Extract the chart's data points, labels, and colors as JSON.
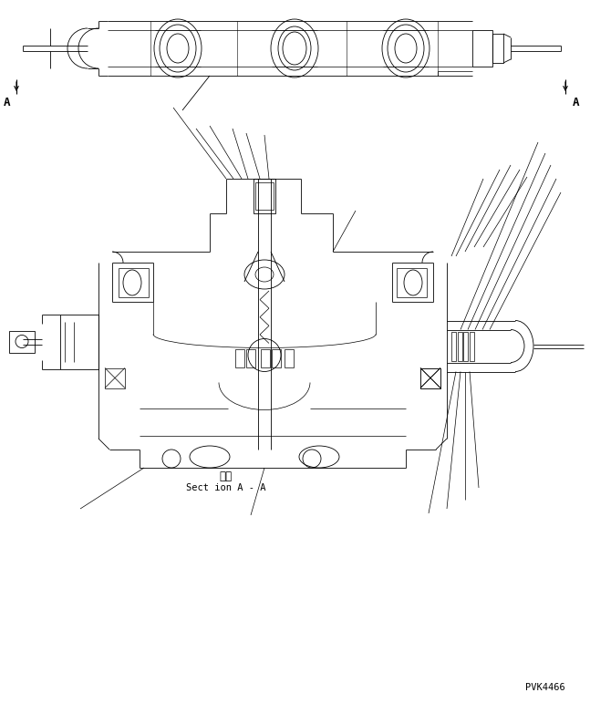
{
  "background_color": "#ffffff",
  "line_color": "#000000",
  "section_label_jp": "断面",
  "section_label_en": "Sect ion A - A",
  "part_number": "PVK4466",
  "label_A": "A",
  "fig_width": 6.47,
  "fig_height": 7.71,
  "dpi": 100
}
